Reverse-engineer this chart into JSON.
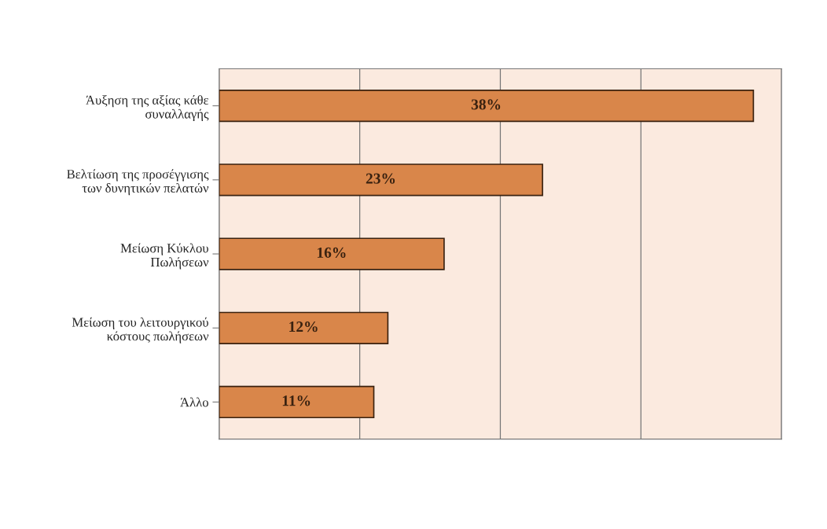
{
  "chart_data": {
    "type": "bar",
    "orientation": "horizontal",
    "categories": [
      "Άυξηση της αξίας κάθε\nσυναλλαγής",
      "Βελτίωση της προσέγγισης\nτων δυνητικών πελατών",
      "Μείωση Κύκλου\nΠωλήσεων",
      "Μείωση του λειτουργικού\nκόστους πωλήσεων",
      "Άλλο"
    ],
    "values": [
      38,
      23,
      16,
      12,
      11
    ],
    "value_labels": [
      "38%",
      "23%",
      "16%",
      "12%",
      "11%"
    ],
    "color": "#d9864a",
    "xlim": [
      0,
      40
    ],
    "xticks": [
      {
        "value": 0,
        "label": null
      },
      {
        "value": 10,
        "label": null
      },
      {
        "value": 20,
        "label": null
      },
      {
        "value": 30,
        "label": null
      },
      {
        "value": 40,
        "label": null
      }
    ],
    "grid": "x",
    "tick_labels": "y",
    "legend": false
  }
}
